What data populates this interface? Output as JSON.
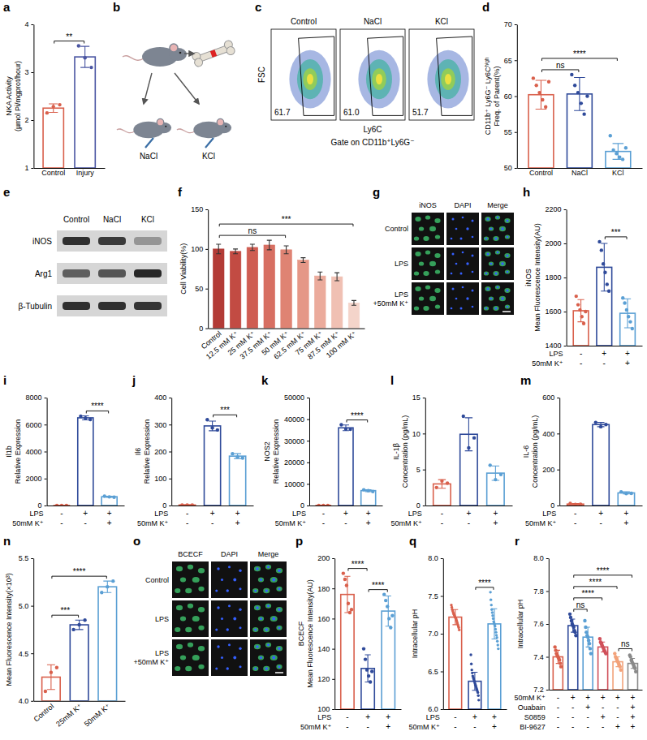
{
  "chart_data": [
    {
      "panel": "a",
      "type": "bar_dot",
      "ylabel": [
        "NKA Activity",
        "(µmol Pi/mgprot/hour)"
      ],
      "categories": [
        "Control",
        "Injury"
      ],
      "values": [
        2.25,
        3.32
      ],
      "errors": [
        0.09,
        0.22
      ],
      "points": [
        [
          2.15,
          2.28,
          2.32
        ],
        [
          3.55,
          3.3,
          3.1
        ]
      ],
      "colors": [
        "#d9604c",
        "#4a55a2"
      ],
      "ylim": [
        1,
        4
      ],
      "yticks": [
        1,
        2,
        3,
        4
      ],
      "annotations": [
        {
          "from": 0,
          "to": 1,
          "text": "**"
        }
      ]
    },
    {
      "panel": "d",
      "type": "bar_dot",
      "ylabel": [
        "CD11b⁺ Ly6G⁻ Ly6Cʰⁱᵍʰ",
        "Freq. of Parent(%)"
      ],
      "categories": [
        "Control",
        "NaCl",
        "KCl"
      ],
      "values": [
        60.2,
        60.3,
        52.3
      ],
      "errors": [
        2.0,
        2.3,
        1.1
      ],
      "points": [
        [
          62.5,
          61.5,
          60.5,
          59.5,
          58.5,
          62.0
        ],
        [
          63.0,
          61.5,
          60.5,
          59.0,
          57.5,
          60.0
        ],
        [
          54.5,
          52.5,
          52.0,
          51.5,
          51.2,
          52.8
        ]
      ],
      "colors": [
        "#d9604c",
        "#2f4a9a",
        "#5a9fd4"
      ],
      "ylim": [
        50,
        70
      ],
      "yticks": [
        50,
        55,
        60,
        65,
        70
      ],
      "annotations": [
        {
          "from": 0,
          "to": 1,
          "text": "ns"
        },
        {
          "from": 0,
          "to": 2,
          "text": "****"
        }
      ]
    },
    {
      "panel": "f",
      "type": "bar",
      "ylabel": "Cell Viability(%)",
      "categories": [
        "Control",
        "12.5 mM K⁺",
        "25 mM K⁺",
        "37.5 mM K⁺",
        "50 mM K⁺",
        "62.5 mM K⁺",
        "75 mM K⁺",
        "87.5 mM K⁺",
        "100 mM K⁺"
      ],
      "values": [
        100,
        97,
        102,
        105,
        99,
        86,
        66,
        65,
        32
      ],
      "errors": [
        6,
        3,
        4,
        6,
        5,
        3,
        5,
        5,
        3
      ],
      "colors": [
        "#b33b36",
        "#c24b43",
        "#cf5d52",
        "#d76f62",
        "#df8373",
        "#e59787",
        "#ebab9c",
        "#f0c0b3",
        "#f4d4ca"
      ],
      "ylim": [
        0,
        150
      ],
      "yticks": [
        0,
        50,
        100,
        150
      ],
      "annotations": [
        {
          "from": 0,
          "to": 4,
          "text": "ns"
        },
        {
          "from": 0,
          "to": 8,
          "text": "***"
        }
      ]
    },
    {
      "panel": "h",
      "type": "bar_dot",
      "ylabel": [
        "iNOS",
        "Mean Fluorescence Intensity(AU)"
      ],
      "categories": [
        null,
        null,
        null
      ],
      "conditions": [
        {
          "label": "LPS",
          "marks": [
            "-",
            "+",
            "+"
          ]
        },
        {
          "label": "50mM K⁺",
          "marks": [
            "-",
            "-",
            "+"
          ]
        }
      ],
      "values": [
        1605,
        1860,
        1590
      ],
      "errors": [
        65,
        140,
        85
      ],
      "points": [
        [
          1690,
          1640,
          1610,
          1570,
          1530,
          1600
        ],
        [
          2010,
          1960,
          1880,
          1830,
          1760,
          1720
        ],
        [
          1680,
          1650,
          1610,
          1570,
          1540,
          1500
        ]
      ],
      "colors": [
        "#d9604c",
        "#2f4a9a",
        "#5a9fd4"
      ],
      "ylim": [
        1400,
        2200
      ],
      "yticks": [
        1400,
        1600,
        1800,
        2000,
        2200
      ],
      "annotations": [
        {
          "from": 1,
          "to": 2,
          "text": "***"
        }
      ]
    },
    {
      "panel": "i",
      "type": "bar_dot",
      "ylabel": [
        "Il1b",
        "Relative Expression"
      ],
      "categories": [
        null,
        null,
        null
      ],
      "conditions": [
        {
          "label": "LPS",
          "marks": [
            "-",
            "+",
            "+"
          ]
        },
        {
          "label": "50mM K⁺",
          "marks": [
            "-",
            "-",
            "+"
          ]
        }
      ],
      "values": [
        1,
        6500,
        650
      ],
      "errors": [
        5,
        150,
        40
      ],
      "points": [
        [
          1,
          1,
          1
        ],
        [
          6620,
          6480,
          6380
        ],
        [
          690,
          640,
          620
        ]
      ],
      "colors": [
        "#d9604c",
        "#2f4a9a",
        "#5a9fd4"
      ],
      "ylim": [
        0,
        8000
      ],
      "yticks": [
        0,
        2000,
        4000,
        6000,
        8000
      ],
      "annotations": [
        {
          "from": 1,
          "to": 2,
          "text": "****"
        }
      ]
    },
    {
      "panel": "j",
      "type": "bar_dot",
      "ylabel": [
        "Il6",
        "Relative Expression"
      ],
      "categories": [
        null,
        null,
        null
      ],
      "conditions": [
        {
          "label": "LPS",
          "marks": [
            "-",
            "+",
            "+"
          ]
        },
        {
          "label": "50mM K⁺",
          "marks": [
            "-",
            "-",
            "+"
          ]
        }
      ],
      "values": [
        2,
        295,
        183
      ],
      "errors": [
        1,
        18,
        9
      ],
      "points": [
        [
          2,
          2,
          2
        ],
        [
          318,
          288,
          280
        ],
        [
          192,
          180,
          176
        ]
      ],
      "colors": [
        "#d9604c",
        "#2f4a9a",
        "#5a9fd4"
      ],
      "ylim": [
        0,
        400
      ],
      "yticks": [
        0,
        100,
        200,
        300,
        400
      ],
      "annotations": [
        {
          "from": 1,
          "to": 2,
          "text": "***"
        }
      ]
    },
    {
      "panel": "k",
      "type": "bar_dot",
      "ylabel": [
        "NOS2",
        "Relative Expression"
      ],
      "categories": [
        null,
        null,
        null
      ],
      "conditions": [
        {
          "label": "LPS",
          "marks": [
            "-",
            "+",
            "+"
          ]
        },
        {
          "label": "50mM K⁺",
          "marks": [
            "-",
            "-",
            "+"
          ]
        }
      ],
      "values": [
        50,
        36000,
        6900
      ],
      "errors": [
        20,
        1300,
        450
      ],
      "points": [
        [
          50,
          50,
          50
        ],
        [
          37400,
          35400,
          35300
        ],
        [
          7300,
          6900,
          6500
        ]
      ],
      "colors": [
        "#d9604c",
        "#2f4a9a",
        "#5a9fd4"
      ],
      "ylim": [
        0,
        50000
      ],
      "yticks": [
        0,
        10000,
        20000,
        30000,
        40000,
        50000
      ],
      "annotations": [
        {
          "from": 1,
          "to": 2,
          "text": "****"
        }
      ]
    },
    {
      "panel": "l",
      "type": "bar_dot",
      "ylabel": [
        "IL-1β",
        "Concentration (pg/mL)"
      ],
      "categories": [
        null,
        null,
        null
      ],
      "conditions": [
        {
          "label": "LPS",
          "marks": [
            "-",
            "+",
            "+"
          ]
        },
        {
          "label": "50mM K⁺",
          "marks": [
            "-",
            "-",
            "+"
          ]
        }
      ],
      "values": [
        3.0,
        9.9,
        4.5
      ],
      "errors": [
        0.6,
        2.3,
        1.0
      ],
      "points": [
        [
          2.5,
          3.4,
          3.1
        ],
        [
          12.4,
          8.0,
          9.4
        ],
        [
          5.6,
          3.6,
          4.3
        ]
      ],
      "colors": [
        "#d9604c",
        "#2f4a9a",
        "#5a9fd4"
      ],
      "ylim": [
        0,
        15
      ],
      "yticks": [
        0,
        5,
        10,
        15
      ]
    },
    {
      "panel": "m",
      "type": "bar_dot",
      "ylabel": [
        "IL-6",
        "Concentration (pg/mL)"
      ],
      "categories": [
        null,
        null,
        null
      ],
      "conditions": [
        {
          "label": "LPS",
          "marks": [
            "-",
            "+",
            "+"
          ]
        },
        {
          "label": "50mM K⁺",
          "marks": [
            "-",
            "-",
            "+"
          ]
        }
      ],
      "values": [
        8,
        450,
        70
      ],
      "errors": [
        3,
        12,
        6
      ],
      "points": [
        [
          11,
          6,
          7
        ],
        [
          462,
          438,
          450
        ],
        [
          76,
          66,
          68
        ]
      ],
      "colors": [
        "#d9604c",
        "#2f4a9a",
        "#5a9fd4"
      ],
      "ylim": [
        0,
        600
      ],
      "yticks": [
        0,
        200,
        400,
        600
      ]
    },
    {
      "panel": "n",
      "type": "bar_dot",
      "ylabel": "Mean Fluorescence Intensity(×10³)",
      "categories": [
        "Control",
        "25mM K⁺",
        "50mM K⁺"
      ],
      "values": [
        4.25,
        4.8,
        5.2
      ],
      "errors": [
        0.13,
        0.05,
        0.06
      ],
      "points": [
        [
          4.1,
          4.3,
          4.35
        ],
        [
          4.75,
          4.8,
          4.85
        ],
        [
          5.14,
          5.2,
          5.26
        ]
      ],
      "colors": [
        "#d9604c",
        "#2f4a9a",
        "#5a9fd4"
      ],
      "ylim": [
        4,
        5.5
      ],
      "yticks": [
        {
          "value": 4,
          "label": "4.0"
        },
        4.5,
        {
          "value": 5,
          "label": "5.0"
        },
        5.5
      ],
      "annotations": [
        {
          "from": 0,
          "to": 1,
          "text": "***"
        },
        {
          "from": 0,
          "to": 2,
          "text": "****"
        }
      ]
    },
    {
      "panel": "p",
      "type": "bar_dot",
      "ylabel": [
        "BCECF",
        "Mean Fluorescence Intensity(AU)"
      ],
      "categories": [
        null,
        null,
        null
      ],
      "conditions": [
        {
          "label": "LPS",
          "marks": [
            "-",
            "+",
            "+"
          ]
        },
        {
          "label": "50mM K⁺",
          "marks": [
            "-",
            "-",
            "+"
          ]
        }
      ],
      "values": [
        176,
        127,
        165
      ],
      "errors": [
        12,
        9,
        10
      ],
      "points": [
        [
          190,
          186,
          182,
          170,
          164,
          166
        ],
        [
          140,
          133,
          126,
          122,
          118,
          125
        ],
        [
          176,
          172,
          168,
          160,
          154,
          162
        ]
      ],
      "colors": [
        "#d9604c",
        "#2f4a9a",
        "#5a9fd4"
      ],
      "ylim": [
        100,
        200
      ],
      "yticks": [
        100,
        120,
        140,
        160,
        180,
        200
      ],
      "annotations": [
        {
          "from": 0,
          "to": 1,
          "text": "****"
        },
        {
          "from": 1,
          "to": 2,
          "text": "****"
        }
      ]
    },
    {
      "panel": "q",
      "type": "bar_dot",
      "ylabel": "Intracellular pH",
      "categories": [
        null,
        null,
        null
      ],
      "conditions": [
        {
          "label": "LPS",
          "marks": [
            "-",
            "+",
            "+"
          ]
        },
        {
          "label": "50mM K⁺",
          "marks": [
            "-",
            "-",
            "+"
          ]
        }
      ],
      "values": [
        7.22,
        6.37,
        7.13
      ],
      "errors": [
        0.1,
        0.12,
        0.2
      ],
      "points": [
        [
          7.38,
          7.35,
          7.32,
          7.3,
          7.28,
          7.26,
          7.25,
          7.24,
          7.22,
          7.21,
          7.2,
          7.18,
          7.16,
          7.14,
          7.12,
          7.1,
          7.08,
          7.05
        ],
        [
          6.72,
          6.6,
          6.52,
          6.48,
          6.44,
          6.42,
          6.4,
          6.38,
          6.36,
          6.34,
          6.32,
          6.3,
          6.28,
          6.26,
          6.24,
          6.22,
          6.18,
          6.12
        ],
        [
          7.55,
          7.45,
          7.38,
          7.32,
          7.28,
          7.24,
          7.2,
          7.16,
          7.14,
          7.12,
          7.1,
          7.06,
          7.02,
          6.98,
          6.95,
          6.9,
          6.85,
          6.8
        ]
      ],
      "colors": [
        "#d9604c",
        "#2f4a9a",
        "#5a9fd4"
      ],
      "ylim": [
        6,
        8
      ],
      "yticks": [
        {
          "value": 6,
          "label": "6.0"
        },
        6.5,
        {
          "value": 7,
          "label": "7.0"
        },
        7.5,
        {
          "value": 8,
          "label": "8.0"
        }
      ],
      "annotations": [
        {
          "from": 1,
          "to": 2,
          "text": "****"
        }
      ]
    },
    {
      "panel": "r",
      "type": "bar_dot",
      "ylabel": "Intracellular pH",
      "categories": [
        null,
        null,
        null,
        null,
        null,
        null
      ],
      "conditions": [
        {
          "label": "50mM K⁺",
          "marks": [
            "-",
            "+",
            "+",
            "+",
            "+",
            "+"
          ]
        },
        {
          "label": "Ouabain",
          "marks": [
            "-",
            "-",
            "+",
            "-",
            "-",
            "+"
          ]
        },
        {
          "label": "S0859",
          "marks": [
            "-",
            "-",
            "-",
            "+",
            "-",
            "+"
          ]
        },
        {
          "label": "BI-9627",
          "marks": [
            "-",
            "-",
            "-",
            "-",
            "+",
            "+"
          ]
        }
      ],
      "values": [
        7.4,
        7.59,
        7.52,
        7.46,
        7.37,
        7.36
      ],
      "errors": [
        0.04,
        0.04,
        0.06,
        0.03,
        0.03,
        0.03
      ],
      "points": [
        [
          7.46,
          7.44,
          7.42,
          7.41,
          7.4,
          7.39,
          7.38,
          7.36,
          7.34
        ],
        [
          7.66,
          7.64,
          7.62,
          7.6,
          7.59,
          7.58,
          7.56,
          7.55,
          7.53
        ],
        [
          7.62,
          7.58,
          7.55,
          7.53,
          7.52,
          7.5,
          7.48,
          7.45,
          7.42
        ],
        [
          7.51,
          7.49,
          7.48,
          7.47,
          7.46,
          7.45,
          7.44,
          7.43,
          7.42
        ],
        [
          7.42,
          7.4,
          7.39,
          7.38,
          7.37,
          7.36,
          7.35,
          7.34,
          7.32
        ],
        [
          7.41,
          7.4,
          7.38,
          7.37,
          7.36,
          7.35,
          7.34,
          7.33,
          7.31
        ]
      ],
      "colors": [
        "#d9604c",
        "#2f4a9a",
        "#5a9fd4",
        "#d0505a",
        "#f2a27a",
        "#8a8a8a"
      ],
      "ylim": [
        7.2,
        8
      ],
      "yticks": [
        7.2,
        7.4,
        7.6,
        7.8,
        {
          "value": 8,
          "label": "8.0"
        }
      ],
      "annotations": [
        {
          "from": 1,
          "to": 2,
          "text": "ns"
        },
        {
          "from": 4,
          "to": 5,
          "text": "ns"
        },
        {
          "from": 1,
          "to": 3,
          "text": "****"
        },
        {
          "from": 1,
          "to": 4,
          "text": "****"
        },
        {
          "from": 1,
          "to": 5,
          "text": "****"
        }
      ]
    }
  ],
  "figures": [
    {
      "panel": "b",
      "labels": [
        "NaCl",
        "KCl"
      ]
    },
    {
      "panel": "c",
      "columns": [
        "Control",
        "NaCl",
        "KCl"
      ],
      "gates": [
        "61.7",
        "61.0",
        "51.7"
      ],
      "ylabel": "FSC",
      "xlabel": "Ly6C",
      "note": "Gate on CD11b⁺Ly6G⁻"
    },
    {
      "panel": "e",
      "lanes": [
        "Control",
        "NaCl",
        "KCl"
      ],
      "rows": [
        "iNOS",
        "Arg1",
        "β-Tubulin"
      ],
      "bands": [
        [
          0.9,
          0.85,
          0.35
        ],
        [
          0.65,
          0.7,
          0.95
        ],
        [
          0.9,
          0.9,
          0.88
        ]
      ]
    },
    {
      "panel": "g",
      "columns": [
        "iNOS",
        "DAPI",
        "Merge"
      ],
      "rows": [
        "Control",
        "LPS",
        "LPS +50mM K⁺"
      ]
    },
    {
      "panel": "o",
      "columns": [
        "BCECF",
        "DAPI",
        "Merge"
      ],
      "rows": [
        "Control",
        "LPS",
        "LPS +50mM K⁺"
      ]
    }
  ]
}
